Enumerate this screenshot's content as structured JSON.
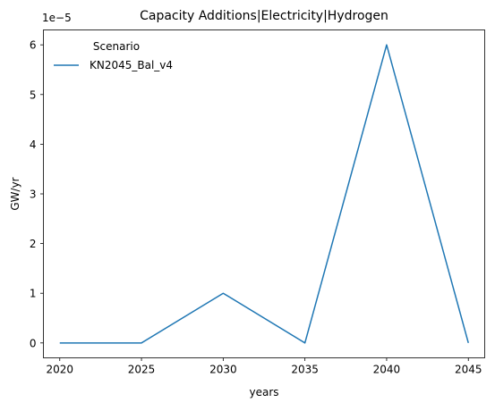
{
  "chart_data": {
    "type": "line",
    "title": "Capacity Additions|Electricity|Hydrogen",
    "xlabel": "years",
    "ylabel": "GW/yr",
    "y_offset_label": "1e−5",
    "y_scale_factor": 1e-05,
    "x": [
      2020,
      2025,
      2030,
      2035,
      2040,
      2045
    ],
    "xlim": [
      2019,
      2046
    ],
    "ylim": [
      -3e-06,
      6.3e-05
    ],
    "x_ticks": [
      2020,
      2025,
      2030,
      2035,
      2040,
      2045
    ],
    "y_ticks": [
      0,
      1,
      2,
      3,
      4,
      5,
      6
    ],
    "grid": false,
    "legend": {
      "title": "Scenario",
      "placement": "top-left"
    },
    "series": [
      {
        "name": "KN2045_Bal_v4",
        "color": "#1f77b4",
        "values": [
          0,
          0,
          1e-05,
          0,
          6e-05,
          0
        ]
      }
    ]
  }
}
